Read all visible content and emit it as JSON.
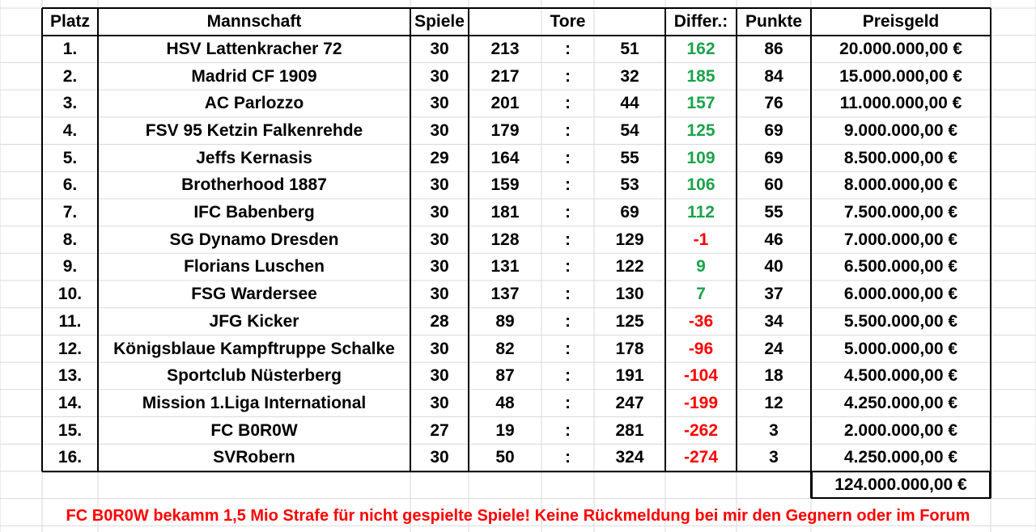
{
  "header": {
    "platz": "Platz",
    "mannschaft": "Mannschaft",
    "spiele": "Spiele",
    "tore": "Tore",
    "differenz": "Differ.:",
    "punkte": "Punkte",
    "preisgeld": "Preisgeld"
  },
  "colors": {
    "positive": "#1aa34a",
    "negative": "#ff0000",
    "note": "#ff0000"
  },
  "rows": [
    {
      "platz": "1.",
      "team": "HSV Lattenkracher 72",
      "spiele": "30",
      "tore_plus": "213",
      "sep": ":",
      "tore_minus": "51",
      "diff": "162",
      "punkte": "86",
      "preisgeld": "20.000.000,00 €"
    },
    {
      "platz": "2.",
      "team": "Madrid CF 1909",
      "spiele": "30",
      "tore_plus": "217",
      "sep": ":",
      "tore_minus": "32",
      "diff": "185",
      "punkte": "84",
      "preisgeld": "15.000.000,00 €"
    },
    {
      "platz": "3.",
      "team": "AC Parlozzo",
      "spiele": "30",
      "tore_plus": "201",
      "sep": ":",
      "tore_minus": "44",
      "diff": "157",
      "punkte": "76",
      "preisgeld": "11.000.000,00 €"
    },
    {
      "platz": "4.",
      "team": "FSV 95 Ketzin Falkenrehde",
      "spiele": "30",
      "tore_plus": "179",
      "sep": ":",
      "tore_minus": "54",
      "diff": "125",
      "punkte": "69",
      "preisgeld": "9.000.000,00 €"
    },
    {
      "platz": "5.",
      "team": "Jeffs Kernasis",
      "spiele": "29",
      "tore_plus": "164",
      "sep": ":",
      "tore_minus": "55",
      "diff": "109",
      "punkte": "69",
      "preisgeld": "8.500.000,00 €"
    },
    {
      "platz": "6.",
      "team": "Brotherhood 1887",
      "spiele": "30",
      "tore_plus": "159",
      "sep": ":",
      "tore_minus": "53",
      "diff": "106",
      "punkte": "60",
      "preisgeld": "8.000.000,00 €"
    },
    {
      "platz": "7.",
      "team": "IFC Babenberg",
      "spiele": "30",
      "tore_plus": "181",
      "sep": ":",
      "tore_minus": "69",
      "diff": "112",
      "punkte": "55",
      "preisgeld": "7.500.000,00 €"
    },
    {
      "platz": "8.",
      "team": "SG Dynamo Dresden",
      "spiele": "30",
      "tore_plus": "128",
      "sep": ":",
      "tore_minus": "129",
      "diff": "-1",
      "punkte": "46",
      "preisgeld": "7.000.000,00 €"
    },
    {
      "platz": "9.",
      "team": "Florians Luschen",
      "spiele": "30",
      "tore_plus": "131",
      "sep": ":",
      "tore_minus": "122",
      "diff": "9",
      "punkte": "40",
      "preisgeld": "6.500.000,00 €"
    },
    {
      "platz": "10.",
      "team": "FSG Wardersee",
      "spiele": "30",
      "tore_plus": "137",
      "sep": ":",
      "tore_minus": "130",
      "diff": "7",
      "punkte": "37",
      "preisgeld": "6.000.000,00 €"
    },
    {
      "platz": "11.",
      "team": "JFG Kicker",
      "spiele": "28",
      "tore_plus": "89",
      "sep": ":",
      "tore_minus": "125",
      "diff": "-36",
      "punkte": "34",
      "preisgeld": "5.500.000,00 €"
    },
    {
      "platz": "12.",
      "team": "Königsblaue Kampftruppe Schalke",
      "spiele": "30",
      "tore_plus": "82",
      "sep": ":",
      "tore_minus": "178",
      "diff": "-96",
      "punkte": "24",
      "preisgeld": "5.000.000,00 €"
    },
    {
      "platz": "13.",
      "team": "Sportclub Nüsterberg",
      "spiele": "30",
      "tore_plus": "87",
      "sep": ":",
      "tore_minus": "191",
      "diff": "-104",
      "punkte": "18",
      "preisgeld": "4.500.000,00 €"
    },
    {
      "platz": "14.",
      "team": "Mission 1.Liga International",
      "spiele": "30",
      "tore_plus": "48",
      "sep": ":",
      "tore_minus": "247",
      "diff": "-199",
      "punkte": "12",
      "preisgeld": "4.250.000,00 €"
    },
    {
      "platz": "15.",
      "team": "FC B0R0W",
      "spiele": "27",
      "tore_plus": "19",
      "sep": ":",
      "tore_minus": "281",
      "diff": "-262",
      "punkte": "3",
      "preisgeld": "2.000.000,00 €"
    },
    {
      "platz": "16.",
      "team": "SVRobern",
      "spiele": "30",
      "tore_plus": "50",
      "sep": ":",
      "tore_minus": "324",
      "diff": "-274",
      "punkte": "3",
      "preisgeld": "4.250.000,00 €"
    }
  ],
  "total": "124.000.000,00 €",
  "note": "FC B0R0W bekamm 1,5 Mio Strafe für nicht gespielte Spiele! Keine Rückmeldung bei mir den Gegnern oder im Forum"
}
